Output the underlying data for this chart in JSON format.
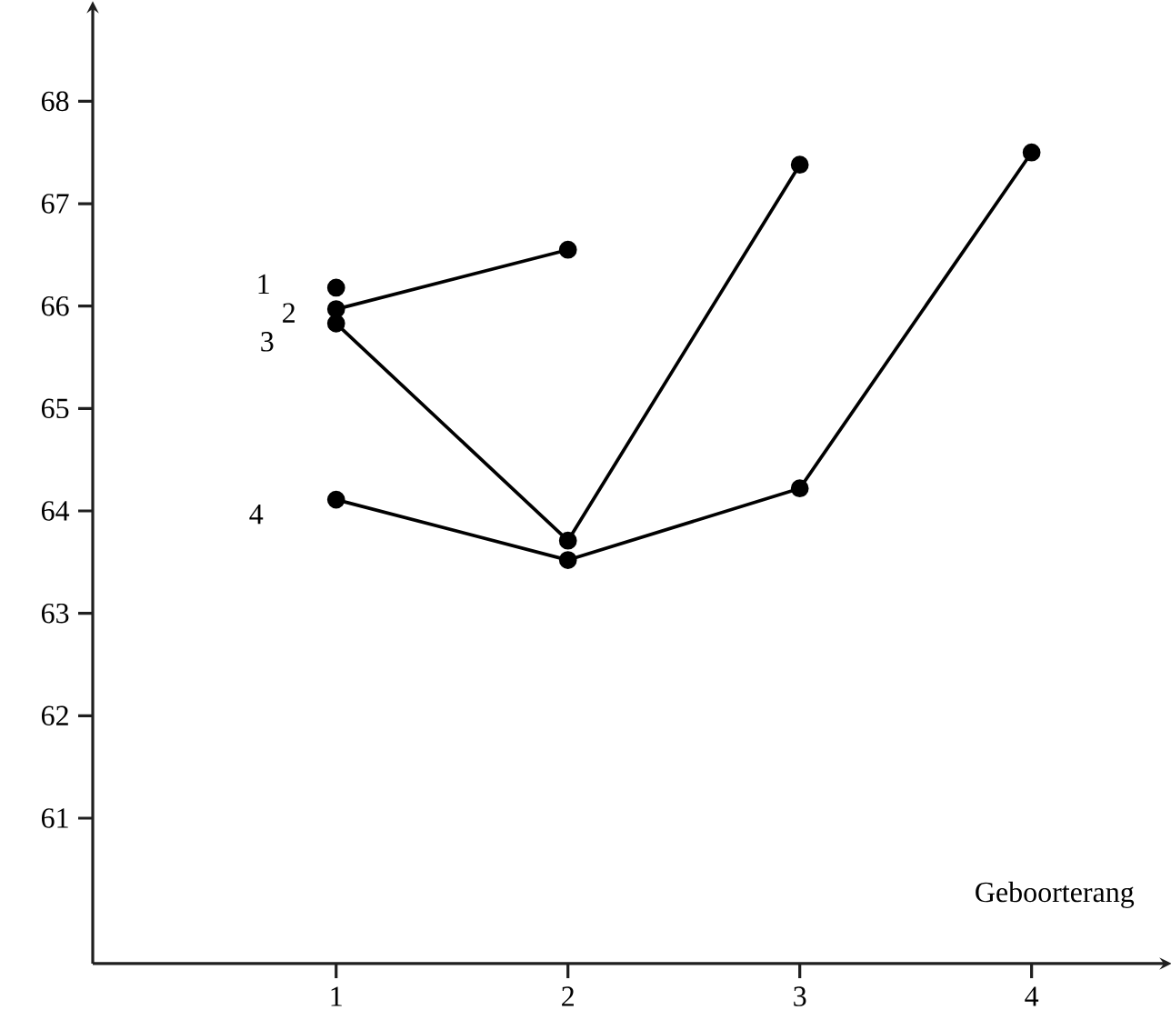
{
  "chart_data": {
    "type": "line",
    "xlabel": "Geboorterang",
    "xlim": [
      -0.05,
      4.57
    ],
    "ylim": [
      59.58,
      68.9
    ],
    "xticks": [
      1,
      2,
      3,
      4
    ],
    "yticks": [
      61,
      62,
      63,
      64,
      65,
      66,
      67,
      68
    ],
    "marker": "circle",
    "line_style": "solid",
    "grid": false,
    "series": [
      {
        "name": "1",
        "color": "#000000",
        "x": [
          1
        ],
        "values": [
          66.18
        ]
      },
      {
        "name": "2",
        "color": "#000000",
        "x": [
          1,
          2
        ],
        "values": [
          65.97,
          66.55
        ]
      },
      {
        "name": "3",
        "color": "#000000",
        "x": [
          1,
          2,
          3
        ],
        "values": [
          65.83,
          63.71,
          67.38
        ]
      },
      {
        "name": "4",
        "color": "#000000",
        "x": [
          1,
          2,
          3,
          4
        ],
        "values": [
          64.11,
          63.52,
          64.22,
          67.5
        ]
      }
    ]
  }
}
